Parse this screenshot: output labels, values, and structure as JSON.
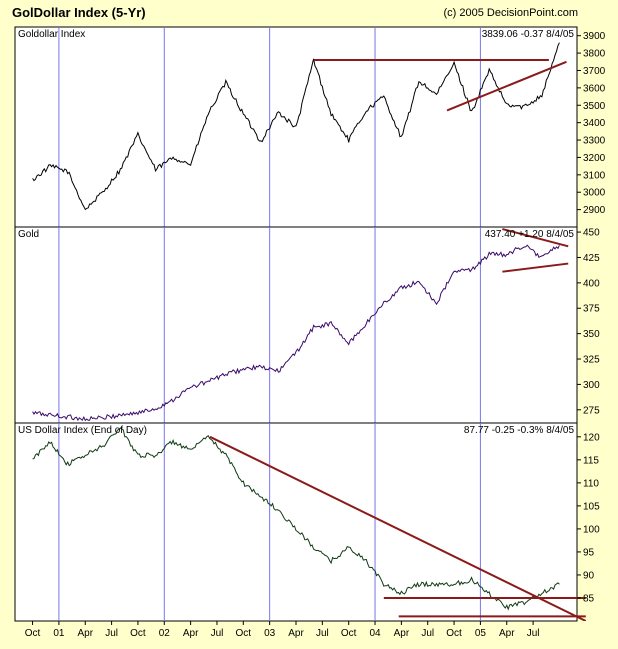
{
  "header": {
    "title": "GolDollar Index (5-Yr)",
    "credit": "(c) 2005 DecisionPoint.com"
  },
  "colors": {
    "background": "#ffffcc",
    "plot_background": "#ffffff",
    "grid": "#7777ee",
    "trendline": "#8b1a1a",
    "goldollar_line": "#000000",
    "gold_line": "#3a0a6a",
    "usd_line": "#0f3a12"
  },
  "chart_data": [
    {
      "type": "line",
      "title": "Goldollar Index",
      "readout": "3839.06  -0.37   8/4/05",
      "ylim": [
        2800,
        3950
      ],
      "yticks": [
        2900,
        3000,
        3100,
        3200,
        3300,
        3400,
        3500,
        3600,
        3700,
        3800,
        3900
      ],
      "series": [
        {
          "x": [
            0,
            2,
            4,
            6,
            8,
            10,
            12,
            14,
            16,
            18,
            20,
            22,
            24,
            26,
            28,
            30,
            32,
            34,
            36,
            38,
            40,
            42,
            44,
            46,
            48,
            50,
            52,
            54,
            56,
            58,
            60
          ],
          "values": [
            3070,
            3150,
            3120,
            2900,
            3000,
            3130,
            3330,
            3130,
            3200,
            3160,
            3450,
            3630,
            3450,
            3290,
            3460,
            3370,
            3760,
            3450,
            3300,
            3470,
            3550,
            3310,
            3640,
            3560,
            3740,
            3460,
            3700,
            3500,
            3490,
            3560,
            3860
          ]
        }
      ],
      "trendlines": [
        {
          "x": [
            32,
            58.8
          ],
          "y": [
            3760,
            3760
          ]
        },
        {
          "x": [
            47.2,
            60.8
          ],
          "y": [
            3470,
            3750
          ]
        }
      ]
    },
    {
      "type": "line",
      "title": "Gold",
      "readout": "437.40  +1.20   8/4/05",
      "ylim": [
        262,
        455
      ],
      "yticks": [
        275,
        300,
        325,
        350,
        375,
        400,
        425,
        450
      ],
      "series": [
        {
          "x": [
            0,
            2,
            4,
            6,
            8,
            10,
            12,
            14,
            16,
            18,
            20,
            22,
            24,
            26,
            28,
            30,
            32,
            34,
            36,
            38,
            40,
            42,
            44,
            46,
            48,
            50,
            52,
            54,
            56,
            58,
            60
          ],
          "values": [
            272,
            270,
            268,
            266,
            267,
            270,
            272,
            276,
            285,
            297,
            303,
            310,
            315,
            317,
            313,
            331,
            356,
            360,
            340,
            360,
            380,
            395,
            401,
            380,
            411,
            413,
            428,
            428,
            437,
            425,
            437
          ]
        }
      ],
      "trendlines": [
        {
          "x": [
            53.5,
            61
          ],
          "y": [
            453,
            436
          ]
        },
        {
          "x": [
            53.5,
            61
          ],
          "y": [
            411,
            419
          ]
        }
      ]
    },
    {
      "type": "line",
      "title": "US Dollar Index (End of Day)",
      "readout": "87.77   -0.25   -0.3%   8/4/05",
      "ylim": [
        80,
        123
      ],
      "yticks": [
        85,
        90,
        95,
        100,
        105,
        110,
        115,
        120
      ],
      "series": [
        {
          "x": [
            0,
            2,
            4,
            6,
            8,
            10,
            12,
            14,
            16,
            18,
            20,
            22,
            24,
            26,
            28,
            30,
            32,
            34,
            36,
            38,
            40,
            42,
            44,
            46,
            48,
            50,
            52,
            54,
            56,
            58,
            60
          ],
          "values": [
            115,
            119,
            114,
            116,
            118,
            122,
            116,
            116,
            119,
            117,
            120,
            116,
            110,
            107,
            104,
            100,
            96,
            93,
            96,
            93,
            88,
            86,
            88,
            88,
            88,
            89,
            86,
            83,
            84,
            86,
            88
          ]
        }
      ],
      "trendlines": [
        {
          "x": [
            20.2,
            63
          ],
          "y": [
            120,
            80
          ]
        },
        {
          "x": [
            40,
            63
          ],
          "y": [
            85,
            85
          ]
        },
        {
          "x": [
            41.7,
            63
          ],
          "y": [
            81,
            81
          ]
        }
      ]
    }
  ],
  "x_axis": {
    "xlim": [
      -2,
      62
    ],
    "ticks": [
      {
        "x": 0,
        "label": "Oct"
      },
      {
        "x": 3,
        "label": "01"
      },
      {
        "x": 6,
        "label": "Apr"
      },
      {
        "x": 9,
        "label": "Jul"
      },
      {
        "x": 12,
        "label": "Oct"
      },
      {
        "x": 15,
        "label": "02"
      },
      {
        "x": 18,
        "label": "Apr"
      },
      {
        "x": 21,
        "label": "Jul"
      },
      {
        "x": 24,
        "label": "Oct"
      },
      {
        "x": 27,
        "label": "03"
      },
      {
        "x": 30,
        "label": "Apr"
      },
      {
        "x": 33,
        "label": "Jul"
      },
      {
        "x": 36,
        "label": "Oct"
      },
      {
        "x": 39,
        "label": "04"
      },
      {
        "x": 42,
        "label": "Apr"
      },
      {
        "x": 45,
        "label": "Jul"
      },
      {
        "x": 48,
        "label": "Oct"
      },
      {
        "x": 51,
        "label": "05"
      },
      {
        "x": 54,
        "label": "Apr"
      },
      {
        "x": 57,
        "label": "Jul"
      }
    ],
    "year_lines": [
      3,
      15,
      27,
      39,
      51
    ]
  }
}
